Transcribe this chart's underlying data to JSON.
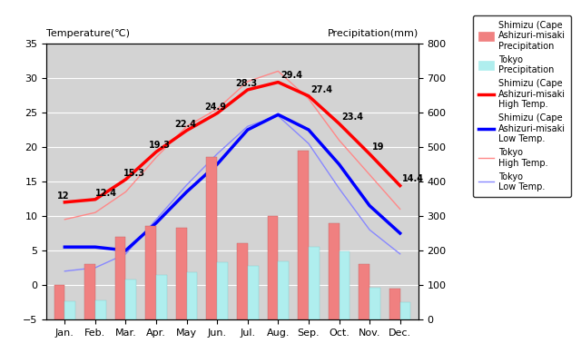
{
  "months": [
    "Jan.",
    "Feb.",
    "Mar.",
    "Apr.",
    "May",
    "Jun.",
    "Jul.",
    "Aug.",
    "Sep.",
    "Oct.",
    "Nov.",
    "Dec."
  ],
  "shimizu_high": [
    12,
    12.4,
    15.3,
    19.3,
    22.4,
    24.9,
    28.3,
    29.4,
    27.4,
    23.4,
    19,
    14.4
  ],
  "shimizu_low": [
    5.5,
    5.5,
    5.0,
    9.0,
    13.5,
    17.5,
    22.5,
    24.7,
    22.5,
    17.5,
    11.5,
    7.5
  ],
  "tokyo_high": [
    9.5,
    10.5,
    13.5,
    18.5,
    23.0,
    25.5,
    29.5,
    31.0,
    27.0,
    21.0,
    16.0,
    11.0
  ],
  "tokyo_low": [
    2.0,
    2.5,
    4.5,
    9.5,
    14.5,
    19.0,
    23.0,
    24.5,
    20.5,
    14.0,
    8.0,
    4.5
  ],
  "shimizu_precip": [
    100,
    160,
    240,
    270,
    265,
    470,
    220,
    300,
    490,
    280,
    160,
    90
  ],
  "tokyo_precip": [
    52,
    56,
    117,
    130,
    137,
    167,
    154,
    168,
    210,
    197,
    93,
    51
  ],
  "temp_min": -5,
  "temp_max": 35,
  "precip_min": 0,
  "precip_max": 800,
  "bg_color": "#d3d3d3",
  "shimizu_precip_color": "#f08080",
  "tokyo_precip_color": "#afeeee",
  "shimizu_high_color": "#ff0000",
  "shimizu_low_color": "#0000ff",
  "tokyo_high_color": "#ff8888",
  "tokyo_low_color": "#8888ff",
  "title_left": "Temperature(℃)",
  "title_right": "Precipitation(mm)",
  "label_shimizu_precip": "Shimizu (Cape\nAshizuri-misaki\nPrecipitation",
  "label_tokyo_precip": "Tokyo\nPrecipitation",
  "label_shimizu_high": "Shimizu (Cape\nAshizuri-misaki\nHigh Temp.",
  "label_shimizu_low": "Shimizu (Cape\nAshizuri-misaki\nLow Temp.",
  "label_tokyo_high": "Tokyo\nHigh Temp.",
  "label_tokyo_low": "Tokyo\nLow Temp.",
  "figsize": [
    6.4,
    4.0
  ],
  "dpi": 100
}
